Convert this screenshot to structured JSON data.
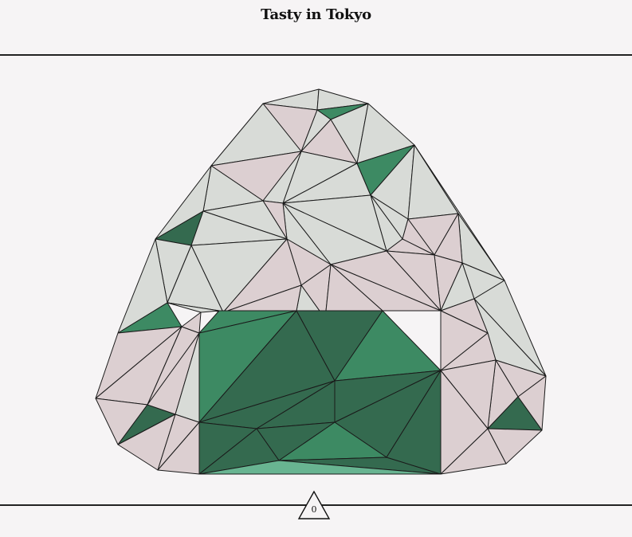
{
  "header": {
    "title": "Tasty in Tokyo"
  },
  "artwork": {
    "subject": "low-poly-onigiri",
    "colors": {
      "rice_grey": "#d8dbd7",
      "rice_pink": "#dccfd1",
      "nori_dark": "#346a4f",
      "nori_mid": "#3d8a63",
      "nori_light": "#68b491",
      "outline": "#1a1a1a",
      "background": "#f6f4f5"
    }
  },
  "footer": {
    "counter_value": "0",
    "counter_icon": "triangle-icon"
  }
}
